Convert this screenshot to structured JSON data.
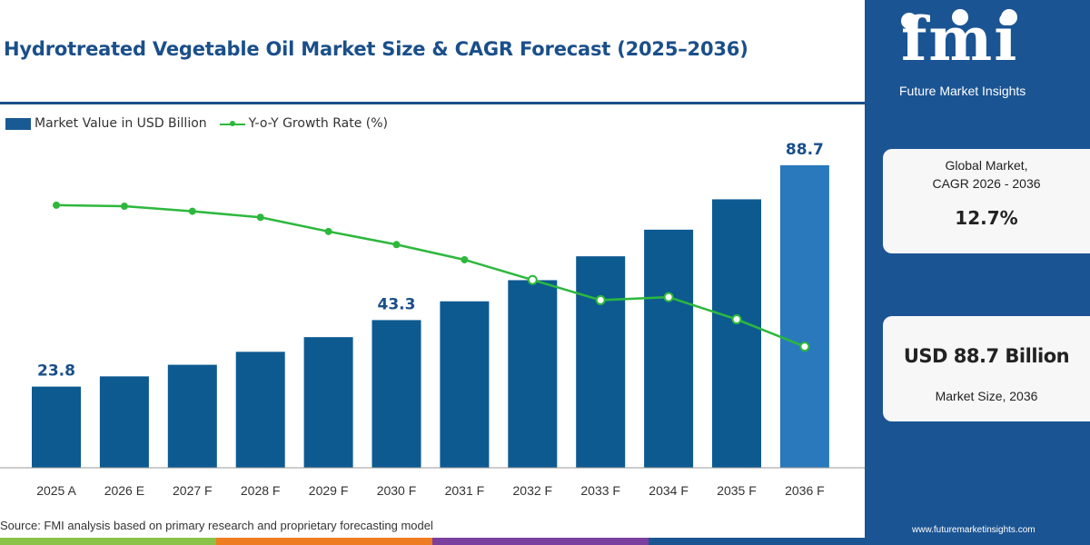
{
  "title": "Hydrotreated Vegetable Oil Market Size & CAGR Forecast (2025–2036)",
  "legend": {
    "bar_label": "Market Value in USD Billion",
    "line_label": "Y-o-Y Growth Rate (%)"
  },
  "source": "Source: FMI analysis based on primary research and proprietary forecasting model",
  "colors": {
    "brand_blue": "#1b5493",
    "bar": "#0d5a91",
    "bar_last": "#2a79bd",
    "line": "#2db83d",
    "strip": [
      "#8bc34a",
      "#f07c21",
      "#7b3fa0",
      "#1b5493"
    ]
  },
  "sidebar": {
    "logo_text": "fmi",
    "logo_subtitle": "Future Market Insights",
    "card1": {
      "label_line1": "Global Market,",
      "label_line2": "CAGR 2026 - 2036",
      "value": "12.7%"
    },
    "card2": {
      "value": "USD 88.7 Billion",
      "label": "Market Size, 2036"
    },
    "website": "www.futuremarketinsights.com"
  },
  "chart_data": {
    "type": "bar",
    "categories": [
      "2025 A",
      "2026 E",
      "2027 F",
      "2028 F",
      "2029 F",
      "2030 F",
      "2031 F",
      "2032 F",
      "2033 F",
      "2034 F",
      "2035 F",
      "2036 F"
    ],
    "series": [
      {
        "name": "Market Value in USD Billion",
        "type": "bar",
        "values": [
          23.8,
          26.8,
          30.2,
          34.0,
          38.3,
          43.3,
          48.8,
          55.0,
          62.0,
          69.8,
          78.7,
          88.7
        ],
        "labeled": [
          "23.8",
          null,
          null,
          null,
          null,
          "43.3",
          null,
          null,
          null,
          null,
          null,
          "88.7"
        ]
      },
      {
        "name": "Y-o-Y Growth Rate (%)",
        "type": "line",
        "values": [
          13.0,
          12.95,
          12.7,
          12.4,
          11.7,
          11.05,
          10.3,
          9.3,
          8.3,
          8.45,
          7.35,
          6.0
        ]
      }
    ],
    "ylim": [
      0,
      90
    ],
    "y2lim": [
      0,
      15.2
    ],
    "grid": false,
    "legend_position": "top-left"
  }
}
